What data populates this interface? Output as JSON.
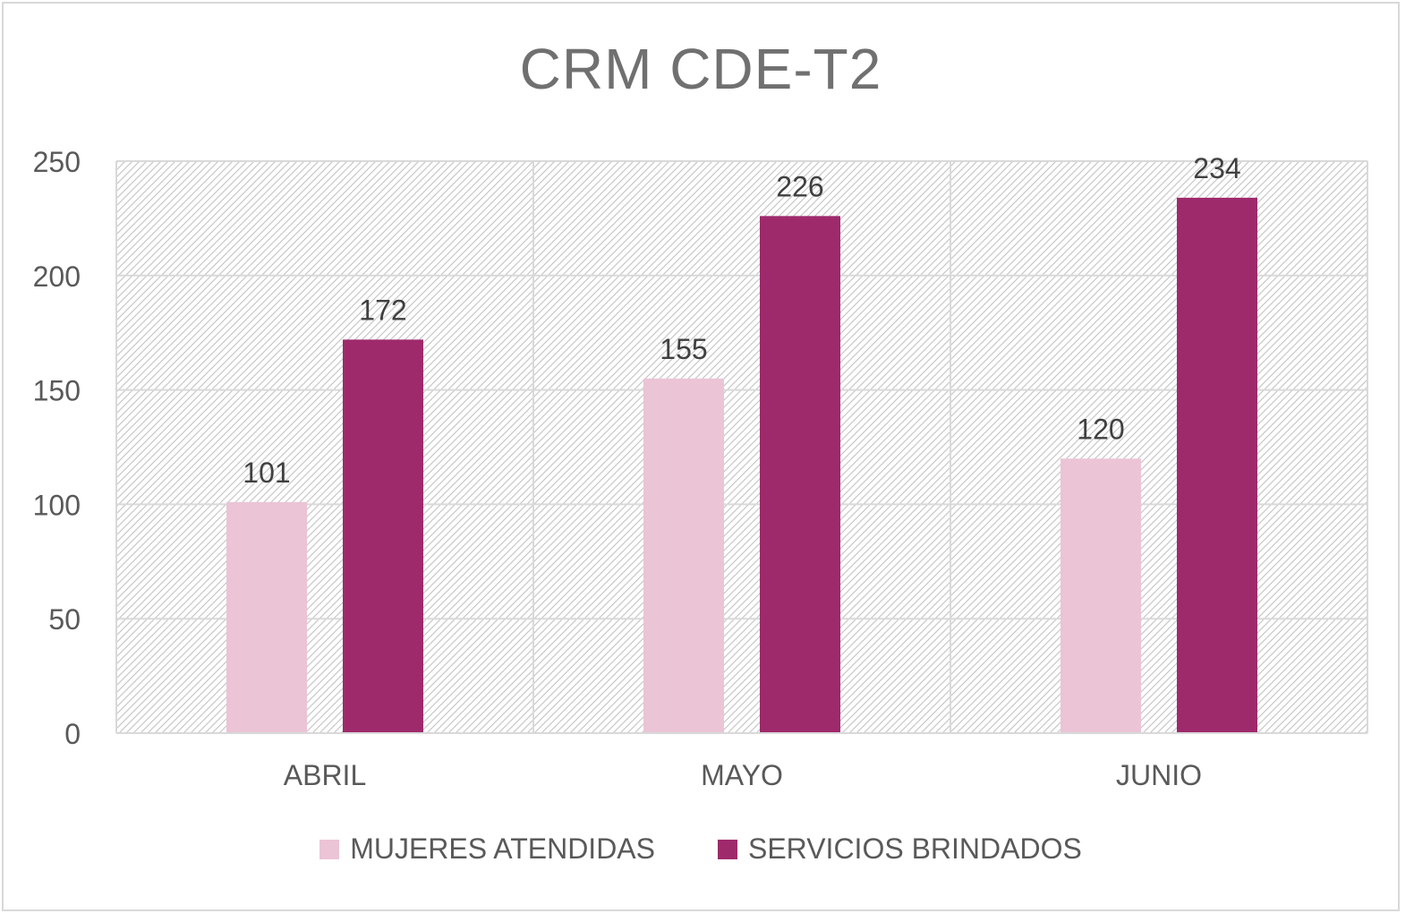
{
  "chart_data": {
    "type": "bar",
    "title": "CRM CDE-T2",
    "xlabel": "",
    "ylabel": "",
    "categories": [
      "ABRIL",
      "MAYO",
      "JUNIO"
    ],
    "series": [
      {
        "name": "MUJERES ATENDIDAS",
        "values": [
          101,
          155,
          120
        ],
        "color": "#ebc4d6"
      },
      {
        "name": "SERVICIOS BRINDADOS",
        "values": [
          172,
          226,
          234
        ],
        "color": "#9e2a6c"
      }
    ],
    "ylim": [
      0,
      250
    ],
    "yticks": [
      "0",
      "50",
      "100",
      "150",
      "200",
      "250"
    ],
    "grid": true,
    "legend_position": "bottom"
  }
}
